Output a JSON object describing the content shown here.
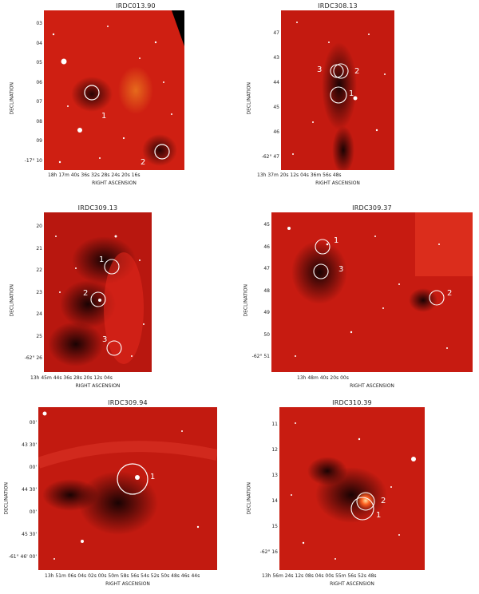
{
  "axis_labels": {
    "y": "DECLINATION",
    "x": "RIGHT ASCENSION"
  },
  "panels": [
    {
      "title": "IRDC013.90",
      "yticks": [
        "03",
        "04",
        "05",
        "06",
        "07",
        "08",
        "09",
        "-17° 10"
      ],
      "xticks": "18h 17m 40s  36s  32s  28s  24s  20s  16s",
      "sources": [
        "1",
        "2"
      ]
    },
    {
      "title": "IRDC308.13",
      "yticks": [
        "47",
        "43",
        "44",
        "45",
        "46",
        "-62° 47"
      ],
      "xticks": "13h 37m 20s  12s  04s  36m 56s  48s",
      "sources": [
        "3",
        "2",
        "1"
      ]
    },
    {
      "title": "IRDC309.13",
      "yticks": [
        "20",
        "21",
        "22",
        "23",
        "24",
        "25",
        "-62° 26"
      ],
      "xticks": "13h 45m 44s  36s  28s  20s  12s  04s",
      "sources": [
        "1",
        "2",
        "3"
      ]
    },
    {
      "title": "IRDC309.37",
      "yticks": [
        "45",
        "46",
        "47",
        "48",
        "49",
        "50",
        "-62° 51"
      ],
      "xticks": "13h 48m 40s  20s  00s",
      "sources": [
        "1",
        "3",
        "2"
      ]
    },
    {
      "title": "IRDC309.94",
      "yticks": [
        "00'",
        "43 30'",
        "00'",
        "44 30'",
        "00'",
        "45 30'",
        "-61° 46' 00'"
      ],
      "xticks": "13h 51m 06s  04s  02s  00s  50m 58s  56s  54s  52s  50s  48s  46s  44s",
      "sources": [
        "1"
      ]
    },
    {
      "title": "IRDC310.39",
      "yticks": [
        "11",
        "12",
        "13",
        "14",
        "15",
        "-62° 16"
      ],
      "xticks": "13h 56m 24s  12s  08s  04s  00s  55m 56s  52s  48s",
      "sources": [
        "2",
        "1"
      ]
    }
  ]
}
